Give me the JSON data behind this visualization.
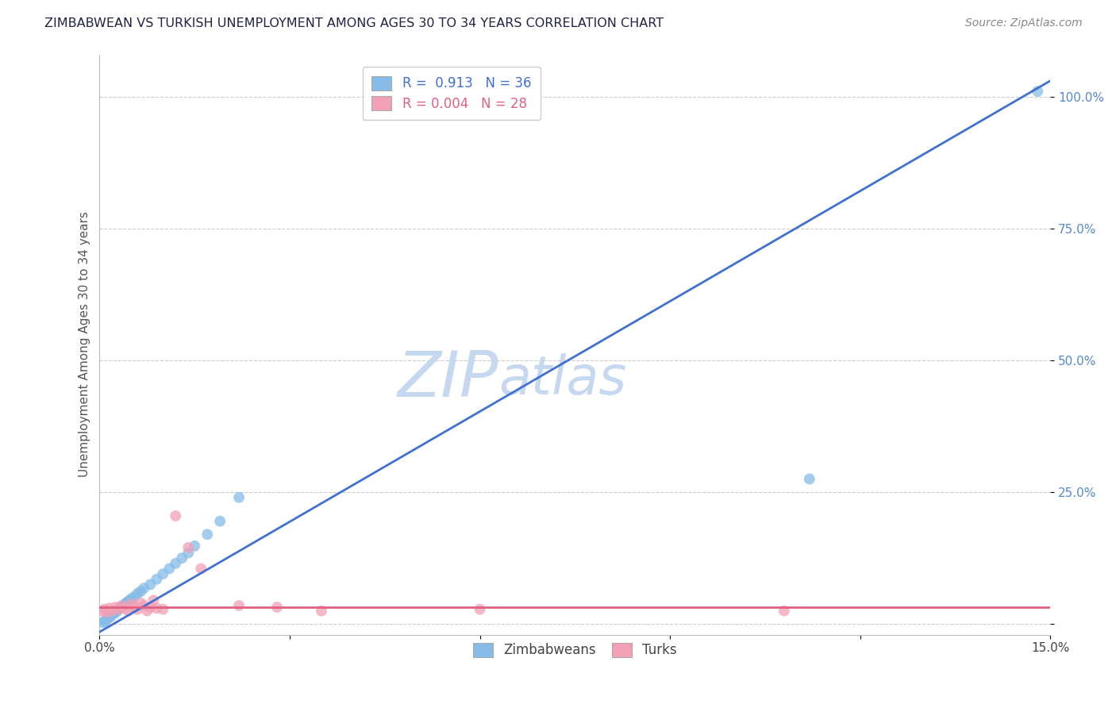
{
  "title": "ZIMBABWEAN VS TURKISH UNEMPLOYMENT AMONG AGES 30 TO 34 YEARS CORRELATION CHART",
  "source": "Source: ZipAtlas.com",
  "ylabel_label": "Unemployment Among Ages 30 to 34 years",
  "xmin": 0.0,
  "xmax": 15.0,
  "ymin": -2.0,
  "ymax": 108.0,
  "blue_R": 0.913,
  "blue_N": 36,
  "pink_R": 0.004,
  "pink_N": 28,
  "blue_color": "#85BCE8",
  "pink_color": "#F2A0B5",
  "blue_line_color": "#4070D0",
  "pink_line_color": "#E06080",
  "watermark_zip": "ZIP",
  "watermark_atlas": "atlas",
  "watermark_color": "#C5D8F0",
  "background_color": "#FFFFFF",
  "ytick_vals": [
    0,
    25,
    50,
    75,
    100
  ],
  "ytick_labels": [
    "",
    "25.0%",
    "50.0%",
    "75.0%",
    "100.0%"
  ],
  "blue_scatter_x": [
    0.05,
    0.08,
    0.1,
    0.12,
    0.15,
    0.18,
    0.2,
    0.22,
    0.25,
    0.28,
    0.3,
    0.32,
    0.35,
    0.38,
    0.4,
    0.42,
    0.45,
    0.48,
    0.5,
    0.55,
    0.6,
    0.65,
    0.7,
    0.8,
    0.9,
    1.0,
    1.1,
    1.2,
    1.3,
    1.4,
    1.5,
    1.7,
    1.9,
    2.2,
    11.2,
    14.8
  ],
  "blue_scatter_y": [
    0.3,
    0.5,
    0.8,
    1.0,
    1.2,
    1.5,
    1.8,
    2.0,
    2.2,
    2.5,
    2.8,
    3.0,
    3.3,
    3.5,
    3.8,
    4.0,
    4.3,
    4.5,
    4.8,
    5.2,
    5.8,
    6.2,
    6.8,
    7.5,
    8.5,
    9.5,
    10.5,
    11.5,
    12.5,
    13.5,
    14.8,
    17.0,
    19.5,
    24.0,
    27.5,
    101.0
  ],
  "pink_scatter_x": [
    0.05,
    0.08,
    0.12,
    0.15,
    0.2,
    0.25,
    0.3,
    0.35,
    0.4,
    0.45,
    0.5,
    0.55,
    0.6,
    0.65,
    0.7,
    0.75,
    0.8,
    0.85,
    0.9,
    1.0,
    1.2,
    1.4,
    1.6,
    2.2,
    2.8,
    3.5,
    6.0,
    10.8
  ],
  "pink_scatter_y": [
    2.5,
    2.8,
    2.2,
    3.0,
    2.5,
    3.2,
    2.8,
    3.5,
    3.0,
    2.5,
    3.8,
    3.2,
    2.8,
    4.0,
    3.5,
    2.5,
    3.2,
    4.5,
    3.0,
    2.8,
    20.5,
    14.5,
    10.5,
    3.5,
    3.2,
    2.5,
    2.8,
    2.5
  ],
  "blue_line_x0": 0.0,
  "blue_line_y0": -1.5,
  "blue_line_x1": 15.0,
  "blue_line_y1": 103.0,
  "pink_line_x0": 0.0,
  "pink_line_y0": 3.2,
  "pink_line_x1": 15.0,
  "pink_line_y1": 3.2,
  "title_fontsize": 11.5,
  "source_fontsize": 10,
  "ylabel_fontsize": 11,
  "tick_fontsize": 11,
  "legend_fontsize": 12
}
